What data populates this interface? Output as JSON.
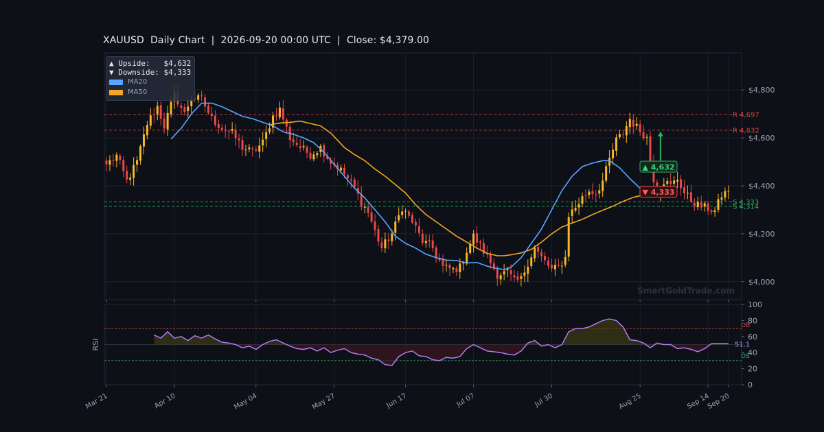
{
  "title": "XAUUSD  Daily Chart  |  2026-09-20 00:00 UTC  |  Close: $4,379.00",
  "colors": {
    "background": "#0d1017",
    "up": "#f5b72b",
    "down": "#e84848",
    "ma20": "#58a6ff",
    "ma50": "#f5a623",
    "rsi": "#b47cf5",
    "resistance": "#d94545",
    "support": "#2fb266"
  },
  "legend": {
    "upside_label": "▲ Upside:   $4,632",
    "downside_label": "▼ Downside: $4,333",
    "ma20_label": "MA20",
    "ma50_label": "MA50"
  },
  "watermark": "SmartGoldTrade.com",
  "chart_data": [
    {
      "type": "candlestick",
      "x_tick_labels": [
        "Mar 21",
        "Apr 10",
        "May 04",
        "May 27",
        "Jun 17",
        "Jul 07",
        "Jul 30",
        "Aug 25",
        "Sep 14",
        "Sep 20"
      ],
      "x_tick_days": [
        0,
        20,
        44,
        67,
        88,
        108,
        131,
        157,
        177,
        183
      ],
      "y_ticks": [
        4000,
        4200,
        4400,
        4600,
        4800
      ],
      "y_tick_labels": [
        "$4,000",
        "$4,200",
        "$4,400",
        "$4,600",
        "$4,800"
      ],
      "ylim": [
        3925,
        4955
      ],
      "close_anchors": [
        [
          0,
          4490
        ],
        [
          3,
          4525
        ],
        [
          6,
          4420
        ],
        [
          9,
          4500
        ],
        [
          12,
          4660
        ],
        [
          15,
          4730
        ],
        [
          17,
          4650
        ],
        [
          20,
          4780
        ],
        [
          23,
          4700
        ],
        [
          25,
          4770
        ],
        [
          28,
          4760
        ],
        [
          31,
          4680
        ],
        [
          34,
          4640
        ],
        [
          37,
          4620
        ],
        [
          40,
          4560
        ],
        [
          43,
          4540
        ],
        [
          46,
          4580
        ],
        [
          49,
          4690
        ],
        [
          51,
          4720
        ],
        [
          54,
          4600
        ],
        [
          57,
          4560
        ],
        [
          60,
          4530
        ],
        [
          63,
          4560
        ],
        [
          66,
          4500
        ],
        [
          68,
          4480
        ],
        [
          70,
          4450
        ],
        [
          73,
          4390
        ],
        [
          75,
          4330
        ],
        [
          77,
          4290
        ],
        [
          79,
          4210
        ],
        [
          81,
          4140
        ],
        [
          84,
          4200
        ],
        [
          87,
          4310
        ],
        [
          90,
          4250
        ],
        [
          93,
          4170
        ],
        [
          96,
          4140
        ],
        [
          99,
          4060
        ],
        [
          102,
          4050
        ],
        [
          104,
          4060
        ],
        [
          106,
          4130
        ],
        [
          108,
          4190
        ],
        [
          110,
          4150
        ],
        [
          113,
          4080
        ],
        [
          115,
          4030
        ],
        [
          118,
          4040
        ],
        [
          120,
          4000
        ],
        [
          122,
          4010
        ],
        [
          124,
          4080
        ],
        [
          126,
          4140
        ],
        [
          128,
          4100
        ],
        [
          131,
          4050
        ],
        [
          133,
          4060
        ],
        [
          135,
          4100
        ],
        [
          136,
          4280
        ],
        [
          138,
          4310
        ],
        [
          140,
          4350
        ],
        [
          142,
          4380
        ],
        [
          144,
          4370
        ],
        [
          146,
          4420
        ],
        [
          148,
          4510
        ],
        [
          150,
          4590
        ],
        [
          152,
          4620
        ],
        [
          154,
          4680
        ],
        [
          155,
          4660
        ],
        [
          157,
          4630
        ],
        [
          159,
          4600
        ],
        [
          160,
          4500
        ],
        [
          161,
          4430
        ],
        [
          162,
          4380
        ],
        [
          164,
          4420
        ],
        [
          166,
          4400
        ],
        [
          168,
          4430
        ],
        [
          170,
          4370
        ],
        [
          172,
          4340
        ],
        [
          174,
          4320
        ],
        [
          176,
          4310
        ],
        [
          178,
          4300
        ],
        [
          179,
          4295
        ],
        [
          181,
          4360
        ],
        [
          183,
          4379
        ]
      ],
      "ma20": {
        "start_day": 19,
        "values": [
          [
            19,
            4595
          ],
          [
            22,
            4640
          ],
          [
            25,
            4700
          ],
          [
            28,
            4745
          ],
          [
            31,
            4745
          ],
          [
            34,
            4730
          ],
          [
            37,
            4710
          ],
          [
            40,
            4690
          ],
          [
            43,
            4680
          ],
          [
            46,
            4665
          ],
          [
            49,
            4650
          ],
          [
            52,
            4625
          ],
          [
            55,
            4615
          ],
          [
            58,
            4600
          ],
          [
            61,
            4580
          ],
          [
            64,
            4540
          ],
          [
            67,
            4490
          ],
          [
            70,
            4440
          ],
          [
            73,
            4390
          ],
          [
            76,
            4350
          ],
          [
            79,
            4300
          ],
          [
            82,
            4250
          ],
          [
            85,
            4190
          ],
          [
            88,
            4160
          ],
          [
            91,
            4140
          ],
          [
            94,
            4115
          ],
          [
            97,
            4100
          ],
          [
            100,
            4090
          ],
          [
            103,
            4088
          ],
          [
            106,
            4078
          ],
          [
            109,
            4080
          ],
          [
            112,
            4065
          ],
          [
            115,
            4055
          ],
          [
            117,
            4050
          ],
          [
            119,
            4060
          ],
          [
            122,
            4100
          ],
          [
            125,
            4160
          ],
          [
            128,
            4220
          ],
          [
            131,
            4300
          ],
          [
            134,
            4380
          ],
          [
            137,
            4440
          ],
          [
            140,
            4480
          ],
          [
            143,
            4495
          ],
          [
            146,
            4505
          ],
          [
            148,
            4505
          ],
          [
            151,
            4475
          ],
          [
            154,
            4430
          ],
          [
            157,
            4390
          ],
          [
            160,
            4375
          ],
          [
            163,
            4365
          ]
        ]
      },
      "ma50": {
        "start_day": 48,
        "values": [
          [
            48,
            4655
          ],
          [
            51,
            4662
          ],
          [
            54,
            4665
          ],
          [
            57,
            4670
          ],
          [
            60,
            4660
          ],
          [
            63,
            4650
          ],
          [
            66,
            4620
          ],
          [
            68,
            4590
          ],
          [
            70,
            4560
          ],
          [
            73,
            4530
          ],
          [
            76,
            4505
          ],
          [
            79,
            4470
          ],
          [
            82,
            4440
          ],
          [
            85,
            4405
          ],
          [
            88,
            4370
          ],
          [
            91,
            4320
          ],
          [
            94,
            4280
          ],
          [
            97,
            4250
          ],
          [
            100,
            4220
          ],
          [
            103,
            4190
          ],
          [
            106,
            4165
          ],
          [
            109,
            4140
          ],
          [
            112,
            4118
          ],
          [
            115,
            4108
          ],
          [
            117,
            4108
          ],
          [
            119,
            4112
          ],
          [
            122,
            4120
          ],
          [
            125,
            4135
          ],
          [
            128,
            4165
          ],
          [
            131,
            4200
          ],
          [
            134,
            4228
          ],
          [
            137,
            4245
          ],
          [
            140,
            4260
          ],
          [
            143,
            4280
          ],
          [
            146,
            4298
          ],
          [
            149,
            4315
          ],
          [
            152,
            4335
          ],
          [
            155,
            4352
          ],
          [
            158,
            4362
          ],
          [
            163,
            4375
          ]
        ]
      },
      "levels": [
        {
          "label": "R 4,697",
          "price": 4697,
          "kind": "resistance"
        },
        {
          "label": "R 4,632",
          "price": 4632,
          "kind": "resistance"
        },
        {
          "label": "S 4,333",
          "price": 4333,
          "kind": "support"
        },
        {
          "label": "S 4,314",
          "price": 4314,
          "kind": "support"
        }
      ],
      "markers": [
        {
          "label": "▲ 4,632",
          "price": 4632,
          "kind": "upside"
        },
        {
          "label": "▼ 4,333",
          "price": 4333,
          "kind": "downside"
        }
      ]
    },
    {
      "type": "line",
      "ylabel": "RSI",
      "ylim": [
        0,
        100
      ],
      "y_ticks": [
        0,
        20,
        40,
        60,
        80,
        100
      ],
      "y_tick_labels": [
        "0",
        "20",
        "40",
        "60",
        "80",
        "100"
      ],
      "overbought": {
        "label": "OB",
        "value": 70
      },
      "oversold": {
        "label": "OS",
        "value": 30
      },
      "midline": 50,
      "last_value_label": "51.1",
      "start_day": 14,
      "values": [
        [
          14,
          62
        ],
        [
          16,
          58
        ],
        [
          18,
          66
        ],
        [
          20,
          58
        ],
        [
          22,
          60
        ],
        [
          24,
          55
        ],
        [
          26,
          61
        ],
        [
          28,
          58
        ],
        [
          30,
          62
        ],
        [
          32,
          57
        ],
        [
          34,
          53
        ],
        [
          36,
          52
        ],
        [
          38,
          50
        ],
        [
          40,
          46
        ],
        [
          42,
          48
        ],
        [
          44,
          44
        ],
        [
          46,
          50
        ],
        [
          48,
          54
        ],
        [
          50,
          56
        ],
        [
          52,
          52
        ],
        [
          54,
          48
        ],
        [
          56,
          45
        ],
        [
          58,
          44
        ],
        [
          60,
          46
        ],
        [
          62,
          42
        ],
        [
          64,
          46
        ],
        [
          66,
          40
        ],
        [
          68,
          43
        ],
        [
          70,
          45
        ],
        [
          72,
          40
        ],
        [
          74,
          38
        ],
        [
          76,
          37
        ],
        [
          78,
          33
        ],
        [
          80,
          31
        ],
        [
          82,
          25
        ],
        [
          84,
          24
        ],
        [
          86,
          35
        ],
        [
          88,
          40
        ],
        [
          90,
          42
        ],
        [
          92,
          36
        ],
        [
          94,
          35
        ],
        [
          96,
          31
        ],
        [
          98,
          30
        ],
        [
          100,
          34
        ],
        [
          102,
          33
        ],
        [
          104,
          35
        ],
        [
          106,
          45
        ],
        [
          108,
          50
        ],
        [
          110,
          46
        ],
        [
          112,
          42
        ],
        [
          114,
          41
        ],
        [
          116,
          40
        ],
        [
          118,
          38
        ],
        [
          120,
          37
        ],
        [
          122,
          42
        ],
        [
          124,
          52
        ],
        [
          126,
          55
        ],
        [
          128,
          48
        ],
        [
          130,
          50
        ],
        [
          132,
          46
        ],
        [
          134,
          50
        ],
        [
          136,
          66
        ],
        [
          138,
          70
        ],
        [
          140,
          70
        ],
        [
          142,
          72
        ],
        [
          144,
          76
        ],
        [
          146,
          80
        ],
        [
          148,
          82
        ],
        [
          150,
          80
        ],
        [
          152,
          72
        ],
        [
          154,
          56
        ],
        [
          156,
          55
        ],
        [
          158,
          52
        ],
        [
          160,
          46
        ],
        [
          162,
          52
        ],
        [
          164,
          50
        ],
        [
          166,
          50
        ],
        [
          168,
          45
        ],
        [
          170,
          46
        ],
        [
          172,
          44
        ],
        [
          174,
          41
        ],
        [
          176,
          45
        ],
        [
          178,
          51
        ],
        [
          180,
          51
        ],
        [
          183,
          51
        ]
      ]
    }
  ]
}
